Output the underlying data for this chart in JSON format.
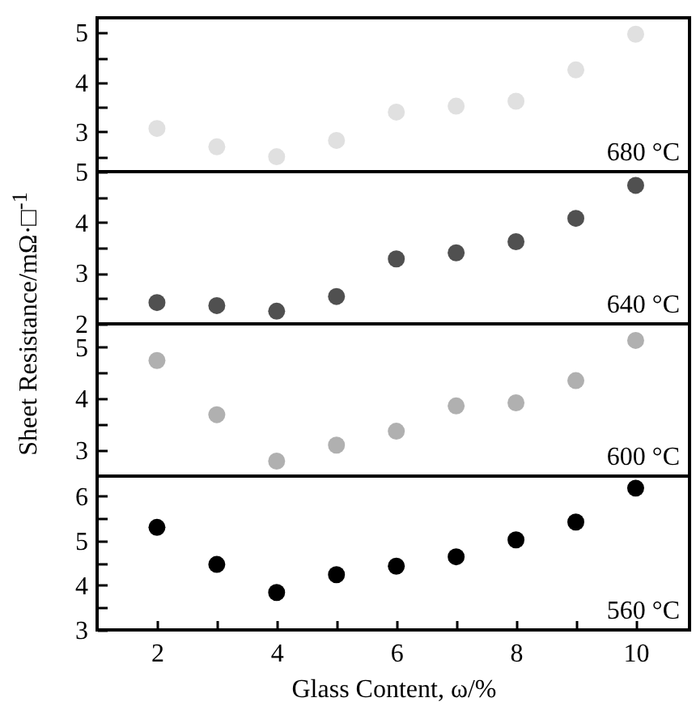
{
  "chart_data": [
    {
      "type": "scatter",
      "ylabel": "Sheet Resistance/mΩ·□$^{-1}$",
      "annotations": [
        "680 °C"
      ],
      "x": [
        2,
        3,
        4,
        5,
        6,
        7,
        8,
        9,
        10
      ],
      "xlim": [
        1,
        10.9
      ],
      "ylim": [
        2.2,
        5.3
      ],
      "yticks": [
        {
          "value": 2.5,
          "label": null
        },
        3,
        {
          "value": 3.5,
          "label": null
        },
        4,
        {
          "value": 4.5,
          "label": null
        },
        5
      ],
      "tick_labels": "y",
      "marker": "circle",
      "grid": false,
      "series": [
        {
          "color": "#e0e0e0",
          "values": [
            3.07,
            2.7,
            2.5,
            2.83,
            3.4,
            3.52,
            3.62,
            4.25,
            4.97
          ]
        }
      ]
    },
    {
      "type": "scatter",
      "annotations": [
        "640 °C"
      ],
      "x": [
        2,
        3,
        4,
        5,
        6,
        7,
        8,
        9,
        10
      ],
      "xlim": [
        1,
        10.9
      ],
      "ylim": [
        2,
        5
      ],
      "yticks": [
        2,
        {
          "value": 2.5,
          "label": null
        },
        3,
        {
          "value": 3.5,
          "label": null
        },
        4,
        {
          "value": 4.5,
          "label": null
        },
        5
      ],
      "tick_labels": "y",
      "marker": "circle",
      "grid": false,
      "series": [
        {
          "color": "#505050",
          "values": [
            2.42,
            2.36,
            2.25,
            2.54,
            3.28,
            3.4,
            3.62,
            4.08,
            4.73
          ]
        }
      ]
    },
    {
      "type": "scatter",
      "annotations": [
        "600 °C"
      ],
      "x": [
        2,
        3,
        4,
        5,
        6,
        7,
        8,
        9,
        10
      ],
      "xlim": [
        1,
        10.9
      ],
      "ylim": [
        2.5,
        5.45
      ],
      "yticks": [
        3,
        {
          "value": 3.5,
          "label": null
        },
        4,
        {
          "value": 4.5,
          "label": null
        },
        5
      ],
      "tick_labels": "y",
      "marker": "circle",
      "grid": false,
      "series": [
        {
          "color": "#b0b0b0",
          "values": [
            4.74,
            3.69,
            2.79,
            3.1,
            3.37,
            3.86,
            3.92,
            4.35,
            5.13
          ]
        }
      ]
    },
    {
      "type": "scatter",
      "xlabel": "Glass Content, ω/%",
      "annotations": [
        "560 °C"
      ],
      "x": [
        2,
        3,
        4,
        5,
        6,
        7,
        8,
        9,
        10
      ],
      "xlim": [
        1,
        10.9
      ],
      "ylim": [
        3,
        6.45
      ],
      "xticks": [
        2,
        {
          "value": 3,
          "label": null
        },
        4,
        {
          "value": 5,
          "label": null
        },
        6,
        {
          "value": 7,
          "label": null
        },
        8,
        {
          "value": 9,
          "label": null
        },
        10
      ],
      "yticks": [
        3,
        {
          "value": 3.5,
          "label": null
        },
        4,
        {
          "value": 4.5,
          "label": null
        },
        5,
        {
          "value": 5.5,
          "label": null
        },
        6
      ],
      "marker": "circle",
      "grid": false,
      "series": [
        {
          "color": "#000000",
          "values": [
            5.3,
            4.47,
            3.84,
            4.24,
            4.43,
            4.64,
            5.02,
            5.42,
            6.18
          ]
        }
      ]
    }
  ]
}
